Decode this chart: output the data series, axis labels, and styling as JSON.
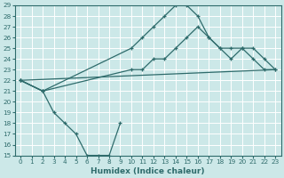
{
  "xlabel": "Humidex (Indice chaleur)",
  "bg_color": "#cce8e8",
  "grid_color": "#ffffff",
  "line_color": "#2e6b6b",
  "xlim": [
    -0.5,
    23.5
  ],
  "ylim": [
    15,
    29
  ],
  "xticks": [
    0,
    1,
    2,
    3,
    4,
    5,
    6,
    7,
    8,
    9,
    10,
    11,
    12,
    13,
    14,
    15,
    16,
    17,
    18,
    19,
    20,
    21,
    22,
    23
  ],
  "yticks": [
    15,
    16,
    17,
    18,
    19,
    20,
    21,
    22,
    23,
    24,
    25,
    26,
    27,
    28,
    29
  ],
  "series": [
    {
      "x": [
        0,
        2,
        10,
        11,
        12,
        13,
        14,
        15,
        16,
        17,
        18,
        19,
        20,
        21,
        22,
        23
      ],
      "y": [
        22,
        21,
        25,
        26,
        27,
        28,
        29,
        29,
        28,
        26,
        25,
        24,
        25,
        24,
        23,
        23
      ],
      "has_markers": true
    },
    {
      "x": [
        0,
        2,
        10,
        11,
        12,
        13,
        14,
        15,
        16,
        17,
        18,
        19,
        20,
        21,
        22,
        23
      ],
      "y": [
        22,
        21,
        23,
        23,
        24,
        24,
        25,
        26,
        27,
        26,
        25,
        25,
        25,
        25,
        24,
        23
      ],
      "has_markers": true
    },
    {
      "x": [
        0,
        23
      ],
      "y": [
        22,
        23
      ],
      "has_markers": false
    },
    {
      "x": [
        0,
        2,
        3,
        4,
        5,
        6,
        7,
        8,
        9
      ],
      "y": [
        22,
        21,
        19,
        18,
        17,
        15,
        15,
        15,
        18
      ],
      "has_markers": true
    }
  ]
}
